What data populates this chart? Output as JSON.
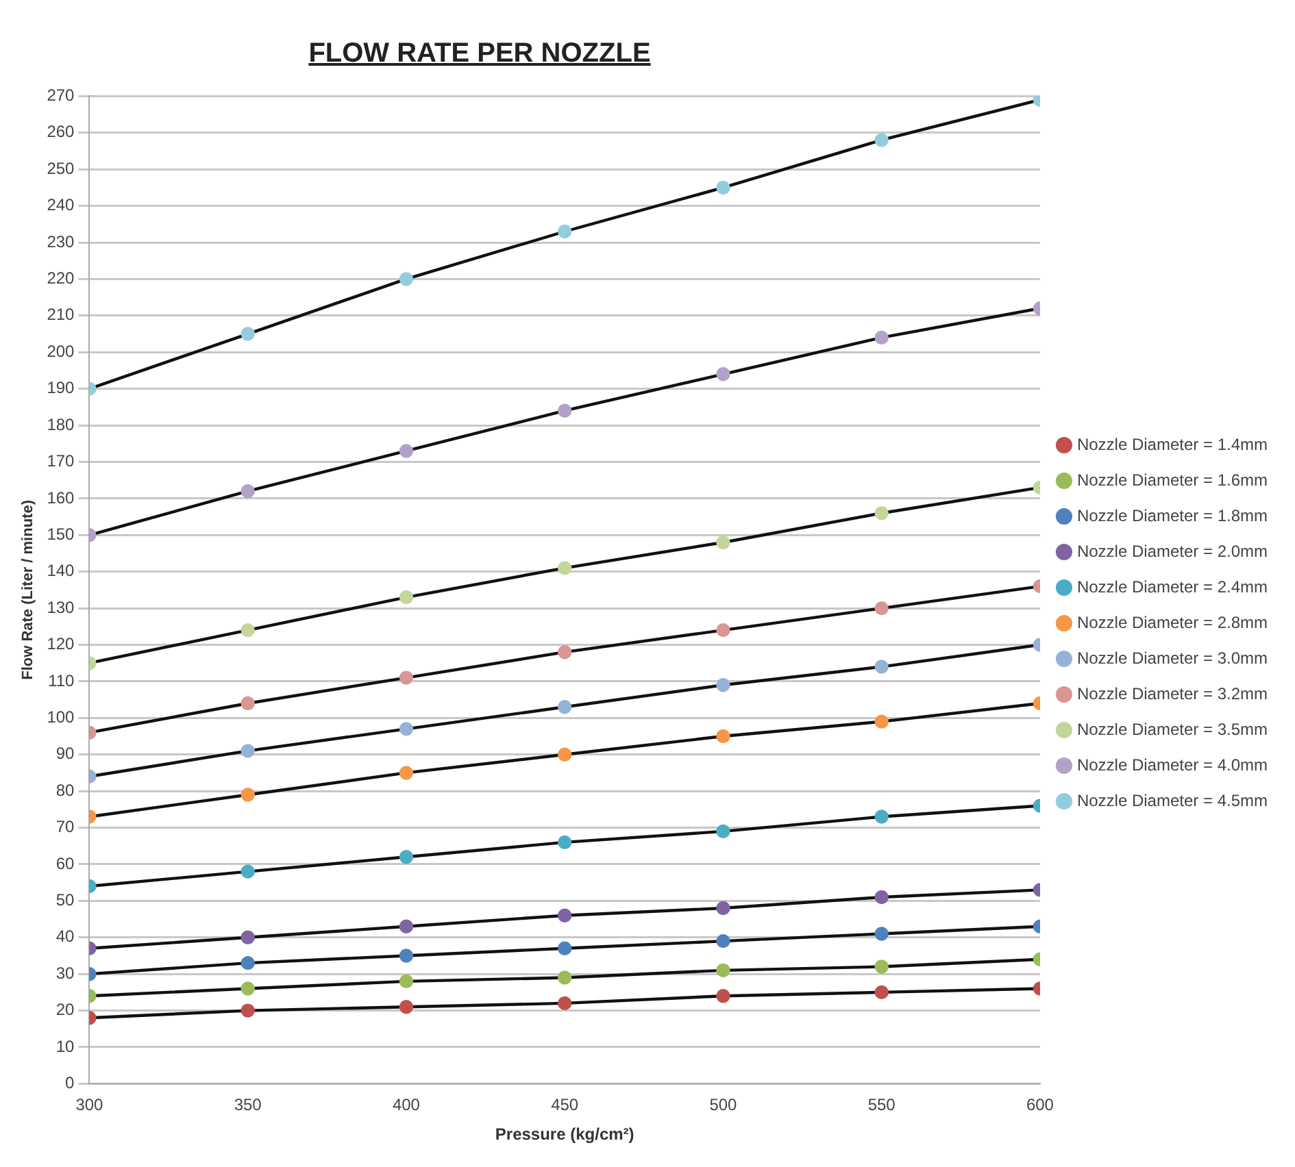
{
  "chart_data": {
    "type": "line",
    "title": "FLOW RATE PER NOZZLE",
    "xlabel": "Pressure (kg/cm²)",
    "ylabel": "Flow Rate (Liter / minute)",
    "x": [
      300,
      350,
      400,
      450,
      500,
      550,
      600
    ],
    "xlim": [
      300,
      600
    ],
    "xticks": [
      300,
      350,
      400,
      450,
      500,
      550,
      600
    ],
    "ylim": [
      0,
      270
    ],
    "yticks": [
      0,
      10,
      20,
      30,
      40,
      50,
      60,
      70,
      80,
      90,
      100,
      110,
      120,
      130,
      140,
      150,
      160,
      170,
      180,
      190,
      200,
      210,
      220,
      230,
      240,
      250,
      260,
      270
    ],
    "grid": "y",
    "legend": "right",
    "marker": "circle",
    "line_style": "solid",
    "series": [
      {
        "name": "Nozzle Diameter = 1.4mm",
        "color": "#c0504d",
        "values": [
          18,
          20,
          21,
          22,
          24,
          25,
          26
        ]
      },
      {
        "name": "Nozzle Diameter = 1.6mm",
        "color": "#9bbb59",
        "values": [
          24,
          26,
          28,
          29,
          31,
          32,
          34
        ]
      },
      {
        "name": "Nozzle Diameter = 1.8mm",
        "color": "#4f81bd",
        "values": [
          30,
          33,
          35,
          37,
          39,
          41,
          43
        ]
      },
      {
        "name": "Nozzle Diameter = 2.0mm",
        "color": "#8064a2",
        "values": [
          37,
          40,
          43,
          46,
          48,
          51,
          53
        ]
      },
      {
        "name": "Nozzle Diameter = 2.4mm",
        "color": "#4bacc6",
        "values": [
          54,
          58,
          62,
          66,
          69,
          73,
          76
        ]
      },
      {
        "name": "Nozzle Diameter = 2.8mm",
        "color": "#f79646",
        "values": [
          73,
          79,
          85,
          90,
          95,
          99,
          104
        ]
      },
      {
        "name": "Nozzle Diameter = 3.0mm",
        "color": "#95b3d7",
        "values": [
          84,
          91,
          97,
          103,
          109,
          114,
          120
        ]
      },
      {
        "name": "Nozzle Diameter = 3.2mm",
        "color": "#d99694",
        "values": [
          96,
          104,
          111,
          118,
          124,
          130,
          136
        ]
      },
      {
        "name": "Nozzle Diameter = 3.5mm",
        "color": "#c3d69b",
        "values": [
          115,
          124,
          133,
          141,
          148,
          156,
          163
        ]
      },
      {
        "name": "Nozzle Diameter = 4.0mm",
        "color": "#b3a2c7",
        "values": [
          150,
          162,
          173,
          184,
          194,
          204,
          212
        ]
      },
      {
        "name": "Nozzle Diameter = 4.5mm",
        "color": "#93cddd",
        "values": [
          190,
          205,
          220,
          233,
          245,
          258,
          269
        ]
      }
    ]
  }
}
